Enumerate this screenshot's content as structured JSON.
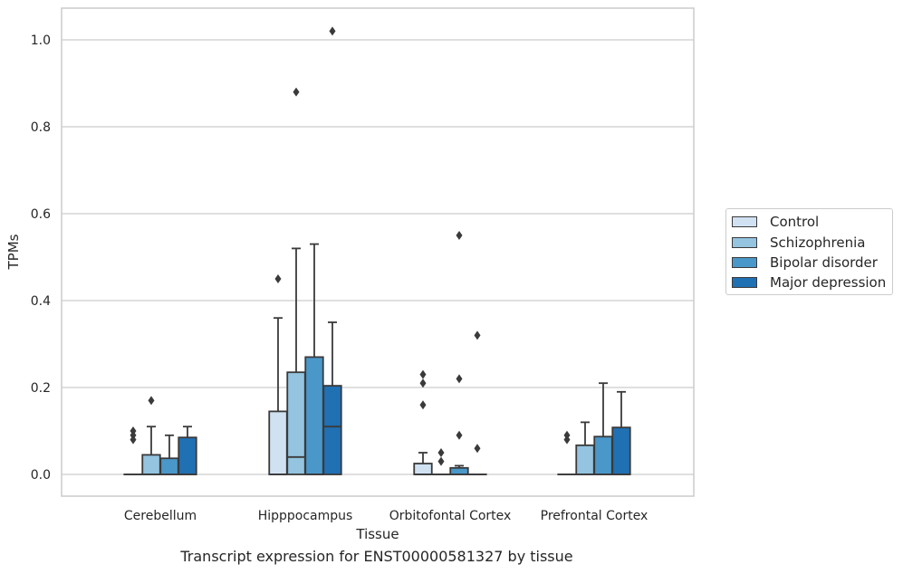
{
  "chart_data": {
    "type": "box",
    "title": "Transcript expression for ENST00000581327 by tissue",
    "xlabel": "Tissue",
    "ylabel": "TPMs",
    "ylim": [
      -0.05,
      1.07
    ],
    "yticks": [
      "0.0",
      "0.2",
      "0.4",
      "0.6",
      "0.8",
      "1.0"
    ],
    "grid": true,
    "legend_position": "right",
    "categories": [
      "Cerebellum",
      "Hipppocampus",
      "Orbitofontal Cortex",
      "Prefrontal Cortex"
    ],
    "series": [
      {
        "name": "Control",
        "color": "#d0e1f2",
        "boxes": [
          {
            "q1": 0.0,
            "median": 0.0,
            "q3": 0.0,
            "whisker_low": 0.0,
            "whisker_high": 0.0,
            "outliers": [
              0.08,
              0.09,
              0.1
            ]
          },
          {
            "q1": 0.0,
            "median": 0.0,
            "q3": 0.145,
            "whisker_low": 0.0,
            "whisker_high": 0.36,
            "outliers": [
              0.45
            ]
          },
          {
            "q1": 0.0,
            "median": 0.0,
            "q3": 0.025,
            "whisker_low": 0.0,
            "whisker_high": 0.05,
            "outliers": [
              0.16,
              0.21,
              0.23
            ]
          },
          {
            "q1": 0.0,
            "median": 0.0,
            "q3": 0.0,
            "whisker_low": 0.0,
            "whisker_high": 0.0,
            "outliers": [
              0.08,
              0.09
            ]
          }
        ]
      },
      {
        "name": "Schizophrenia",
        "color": "#94c4df",
        "boxes": [
          {
            "q1": 0.0,
            "median": 0.0,
            "q3": 0.045,
            "whisker_low": 0.0,
            "whisker_high": 0.11,
            "outliers": [
              0.17
            ]
          },
          {
            "q1": 0.0,
            "median": 0.04,
            "q3": 0.235,
            "whisker_low": 0.0,
            "whisker_high": 0.52,
            "outliers": [
              0.88
            ]
          },
          {
            "q1": 0.0,
            "median": 0.0,
            "q3": 0.0,
            "whisker_low": 0.0,
            "whisker_high": 0.0,
            "outliers": [
              0.03,
              0.05
            ]
          },
          {
            "q1": 0.0,
            "median": 0.0,
            "q3": 0.067,
            "whisker_low": 0.0,
            "whisker_high": 0.12,
            "outliers": []
          }
        ]
      },
      {
        "name": "Bipolar disorder",
        "color": "#4a98c9",
        "boxes": [
          {
            "q1": 0.0,
            "median": 0.0,
            "q3": 0.037,
            "whisker_low": 0.0,
            "whisker_high": 0.09,
            "outliers": []
          },
          {
            "q1": 0.0,
            "median": 0.0,
            "q3": 0.27,
            "whisker_low": 0.0,
            "whisker_high": 0.53,
            "outliers": []
          },
          {
            "q1": 0.0,
            "median": 0.0,
            "q3": 0.015,
            "whisker_low": 0.0,
            "whisker_high": 0.02,
            "outliers": [
              0.09,
              0.22,
              0.55
            ]
          },
          {
            "q1": 0.0,
            "median": 0.0,
            "q3": 0.087,
            "whisker_low": 0.0,
            "whisker_high": 0.21,
            "outliers": []
          }
        ]
      },
      {
        "name": "Major depression",
        "color": "#2070b4",
        "boxes": [
          {
            "q1": 0.0,
            "median": 0.0,
            "q3": 0.085,
            "whisker_low": 0.0,
            "whisker_high": 0.11,
            "outliers": []
          },
          {
            "q1": 0.0,
            "median": 0.11,
            "q3": 0.204,
            "whisker_low": 0.0,
            "whisker_high": 0.35,
            "outliers": [
              1.02
            ]
          },
          {
            "q1": 0.0,
            "median": 0.0,
            "q3": 0.0,
            "whisker_low": 0.0,
            "whisker_high": 0.0,
            "outliers": [
              0.06,
              0.32
            ]
          },
          {
            "q1": 0.0,
            "median": 0.0,
            "q3": 0.108,
            "whisker_low": 0.0,
            "whisker_high": 0.19,
            "outliers": []
          }
        ]
      }
    ]
  }
}
